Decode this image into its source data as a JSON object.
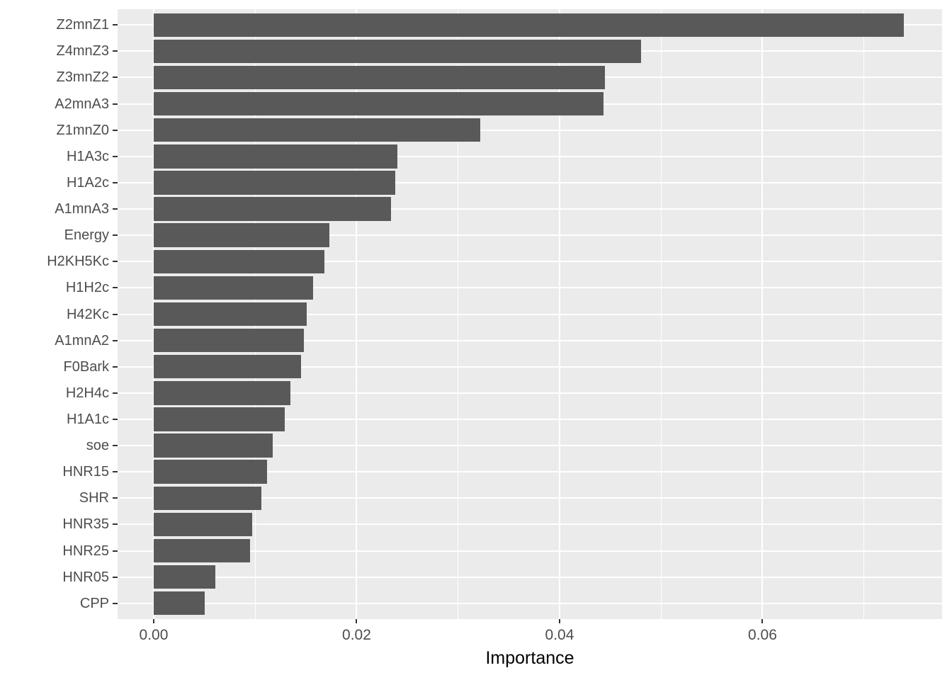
{
  "chart_data": {
    "type": "bar",
    "orientation": "horizontal",
    "title": "",
    "xlabel": "Importance",
    "ylabel": "",
    "categories": [
      "Z2mnZ1",
      "Z4mnZ3",
      "Z3mnZ2",
      "A2mnA3",
      "Z1mnZ0",
      "H1A3c",
      "H1A2c",
      "A1mnA3",
      "Energy",
      "H2KH5Kc",
      "H1H2c",
      "H42Kc",
      "A1mnA2",
      "F0Bark",
      "H2H4c",
      "H1A1c",
      "soe",
      "HNR15",
      "SHR",
      "HNR35",
      "HNR25",
      "HNR05",
      "CPP"
    ],
    "values": [
      0.0739,
      0.048,
      0.0445,
      0.0443,
      0.0322,
      0.024,
      0.0238,
      0.0234,
      0.0173,
      0.0168,
      0.0157,
      0.0151,
      0.0148,
      0.0145,
      0.0135,
      0.0129,
      0.0117,
      0.0112,
      0.0106,
      0.0097,
      0.0095,
      0.0061,
      0.005
    ],
    "xlim": [
      -0.00356,
      0.0777
    ],
    "x_ticks": {
      "values": [
        0,
        0.02,
        0.04,
        0.06
      ],
      "labels": [
        "0.00",
        "0.02",
        "0.04",
        "0.06"
      ]
    },
    "x_minor_ticks": [
      0.01,
      0.03,
      0.05,
      0.07
    ],
    "bar_width_fraction": 0.9,
    "category_expansion": 0.6,
    "grid": true,
    "legend": false,
    "colors": {
      "bar": "#595959",
      "panel_bg": "#EBEBEB",
      "grid": "#FFFFFF",
      "tick_label": "#4D4D4D",
      "axis_title": "#000000",
      "tick_mark": "#333333",
      "background": "#FFFFFF"
    }
  }
}
